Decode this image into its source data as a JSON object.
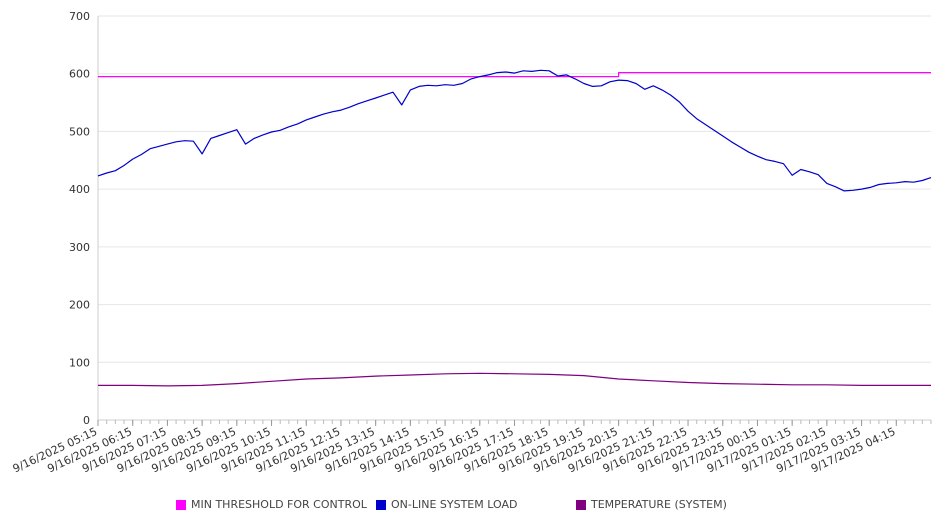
{
  "chart_data": {
    "type": "line",
    "title": "",
    "xlabel": "",
    "ylabel": "",
    "ylim": [
      0,
      700
    ],
    "yticks": [
      0,
      100,
      200,
      300,
      400,
      500,
      600,
      700
    ],
    "grid": true,
    "legend_position": "bottom",
    "x_tick_labels": [
      "9/16/2025 05:15",
      "9/16/2025 06:15",
      "9/16/2025 07:15",
      "9/16/2025 08:15",
      "9/16/2025 09:15",
      "9/16/2025 10:15",
      "9/16/2025 11:15",
      "9/16/2025 12:15",
      "9/16/2025 13:15",
      "9/16/2025 14:15",
      "9/16/2025 15:15",
      "9/16/2025 16:15",
      "9/16/2025 17:15",
      "9/16/2025 18:15",
      "9/16/2025 19:15",
      "9/16/2025 20:15",
      "9/16/2025 21:15",
      "9/16/2025 22:15",
      "9/16/2025 23:15",
      "9/17/2025 00:15",
      "9/17/2025 01:15",
      "9/17/2025 02:15",
      "9/17/2025 03:15",
      "9/17/2025 04:15"
    ],
    "x_interval_minutes": 15,
    "series": [
      {
        "name": "MIN THRESHOLD FOR CONTROL",
        "color": "#ff00ff",
        "step": true,
        "points": [
          [
            "9/16/2025 05:15",
            595
          ],
          [
            "9/16/2025 20:15",
            602
          ],
          [
            "9/17/2025 05:15",
            602
          ]
        ]
      },
      {
        "name": "ON-LINE SYSTEM LOAD",
        "color": "#0000cc",
        "points": [
          [
            "9/16/2025 05:15",
            423
          ],
          [
            "9/16/2025 05:30",
            428
          ],
          [
            "9/16/2025 05:45",
            432
          ],
          [
            "9/16/2025 06:00",
            441
          ],
          [
            "9/16/2025 06:15",
            452
          ],
          [
            "9/16/2025 06:30",
            460
          ],
          [
            "9/16/2025 06:45",
            470
          ],
          [
            "9/16/2025 07:00",
            474
          ],
          [
            "9/16/2025 07:15",
            478
          ],
          [
            "9/16/2025 07:30",
            482
          ],
          [
            "9/16/2025 07:45",
            484
          ],
          [
            "9/16/2025 08:00",
            483
          ],
          [
            "9/16/2025 08:15",
            461
          ],
          [
            "9/16/2025 08:30",
            488
          ],
          [
            "9/16/2025 08:45",
            493
          ],
          [
            "9/16/2025 09:00",
            498
          ],
          [
            "9/16/2025 09:15",
            503
          ],
          [
            "9/16/2025 09:30",
            478
          ],
          [
            "9/16/2025 09:45",
            488
          ],
          [
            "9/16/2025 10:00",
            494
          ],
          [
            "9/16/2025 10:15",
            499
          ],
          [
            "9/16/2025 10:30",
            502
          ],
          [
            "9/16/2025 10:45",
            508
          ],
          [
            "9/16/2025 11:00",
            513
          ],
          [
            "9/16/2025 11:15",
            520
          ],
          [
            "9/16/2025 11:30",
            525
          ],
          [
            "9/16/2025 11:45",
            530
          ],
          [
            "9/16/2025 12:00",
            534
          ],
          [
            "9/16/2025 12:15",
            537
          ],
          [
            "9/16/2025 12:30",
            542
          ],
          [
            "9/16/2025 12:45",
            548
          ],
          [
            "9/16/2025 13:00",
            553
          ],
          [
            "9/16/2025 13:15",
            558
          ],
          [
            "9/16/2025 13:30",
            563
          ],
          [
            "9/16/2025 13:45",
            568
          ],
          [
            "9/16/2025 14:00",
            546
          ],
          [
            "9/16/2025 14:15",
            572
          ],
          [
            "9/16/2025 14:30",
            578
          ],
          [
            "9/16/2025 14:45",
            580
          ],
          [
            "9/16/2025 15:00",
            579
          ],
          [
            "9/16/2025 15:15",
            581
          ],
          [
            "9/16/2025 15:30",
            580
          ],
          [
            "9/16/2025 15:45",
            583
          ],
          [
            "9/16/2025 16:00",
            591
          ],
          [
            "9/16/2025 16:15",
            595
          ],
          [
            "9/16/2025 16:30",
            598
          ],
          [
            "9/16/2025 16:45",
            602
          ],
          [
            "9/16/2025 17:00",
            603
          ],
          [
            "9/16/2025 17:15",
            601
          ],
          [
            "9/16/2025 17:30",
            605
          ],
          [
            "9/16/2025 17:45",
            604
          ],
          [
            "9/16/2025 18:00",
            606
          ],
          [
            "9/16/2025 18:15",
            605
          ],
          [
            "9/16/2025 18:30",
            596
          ],
          [
            "9/16/2025 18:45",
            598
          ],
          [
            "9/16/2025 19:00",
            591
          ],
          [
            "9/16/2025 19:15",
            583
          ],
          [
            "9/16/2025 19:30",
            578
          ],
          [
            "9/16/2025 19:45",
            579
          ],
          [
            "9/16/2025 20:00",
            586
          ],
          [
            "9/16/2025 20:15",
            589
          ],
          [
            "9/16/2025 20:30",
            588
          ],
          [
            "9/16/2025 20:45",
            583
          ],
          [
            "9/16/2025 21:00",
            573
          ],
          [
            "9/16/2025 21:15",
            579
          ],
          [
            "9/16/2025 21:30",
            572
          ],
          [
            "9/16/2025 21:45",
            563
          ],
          [
            "9/16/2025 22:00",
            551
          ],
          [
            "9/16/2025 22:15",
            535
          ],
          [
            "9/16/2025 22:30",
            522
          ],
          [
            "9/16/2025 22:45",
            512
          ],
          [
            "9/16/2025 23:00",
            502
          ],
          [
            "9/16/2025 23:15",
            492
          ],
          [
            "9/16/2025 23:30",
            482
          ],
          [
            "9/16/2025 23:45",
            473
          ],
          [
            "9/17/2025 00:00",
            464
          ],
          [
            "9/17/2025 00:15",
            457
          ],
          [
            "9/17/2025 00:30",
            451
          ],
          [
            "9/17/2025 00:45",
            448
          ],
          [
            "9/17/2025 01:00",
            444
          ],
          [
            "9/17/2025 01:15",
            424
          ],
          [
            "9/17/2025 01:30",
            434
          ],
          [
            "9/17/2025 01:45",
            430
          ],
          [
            "9/17/2025 02:00",
            425
          ],
          [
            "9/17/2025 02:15",
            410
          ],
          [
            "9/17/2025 02:30",
            404
          ],
          [
            "9/17/2025 02:45",
            397
          ],
          [
            "9/17/2025 03:00",
            398
          ],
          [
            "9/17/2025 03:15",
            400
          ],
          [
            "9/17/2025 03:30",
            403
          ],
          [
            "9/17/2025 03:45",
            408
          ],
          [
            "9/17/2025 04:00",
            410
          ],
          [
            "9/17/2025 04:15",
            411
          ],
          [
            "9/17/2025 04:30",
            413
          ],
          [
            "9/17/2025 04:45",
            412
          ],
          [
            "9/17/2025 05:00",
            415
          ],
          [
            "9/17/2025 05:15",
            420
          ]
        ]
      },
      {
        "name": "TEMPERATURE (SYSTEM)",
        "color": "#800080",
        "points": [
          [
            "9/16/2025 05:15",
            60
          ],
          [
            "9/16/2025 06:15",
            60
          ],
          [
            "9/16/2025 07:15",
            59
          ],
          [
            "9/16/2025 08:15",
            60
          ],
          [
            "9/16/2025 09:15",
            63
          ],
          [
            "9/16/2025 10:15",
            67
          ],
          [
            "9/16/2025 11:15",
            71
          ],
          [
            "9/16/2025 12:15",
            73
          ],
          [
            "9/16/2025 13:15",
            76
          ],
          [
            "9/16/2025 14:15",
            78
          ],
          [
            "9/16/2025 15:15",
            80
          ],
          [
            "9/16/2025 16:15",
            81
          ],
          [
            "9/16/2025 17:15",
            80
          ],
          [
            "9/16/2025 18:15",
            79
          ],
          [
            "9/16/2025 19:15",
            77
          ],
          [
            "9/16/2025 20:15",
            71
          ],
          [
            "9/16/2025 21:15",
            68
          ],
          [
            "9/16/2025 22:15",
            65
          ],
          [
            "9/16/2025 23:15",
            63
          ],
          [
            "9/17/2025 00:15",
            62
          ],
          [
            "9/17/2025 01:15",
            61
          ],
          [
            "9/17/2025 02:15",
            61
          ],
          [
            "9/17/2025 03:15",
            60
          ],
          [
            "9/17/2025 04:15",
            60
          ],
          [
            "9/17/2025 05:15",
            60
          ]
        ]
      }
    ]
  }
}
